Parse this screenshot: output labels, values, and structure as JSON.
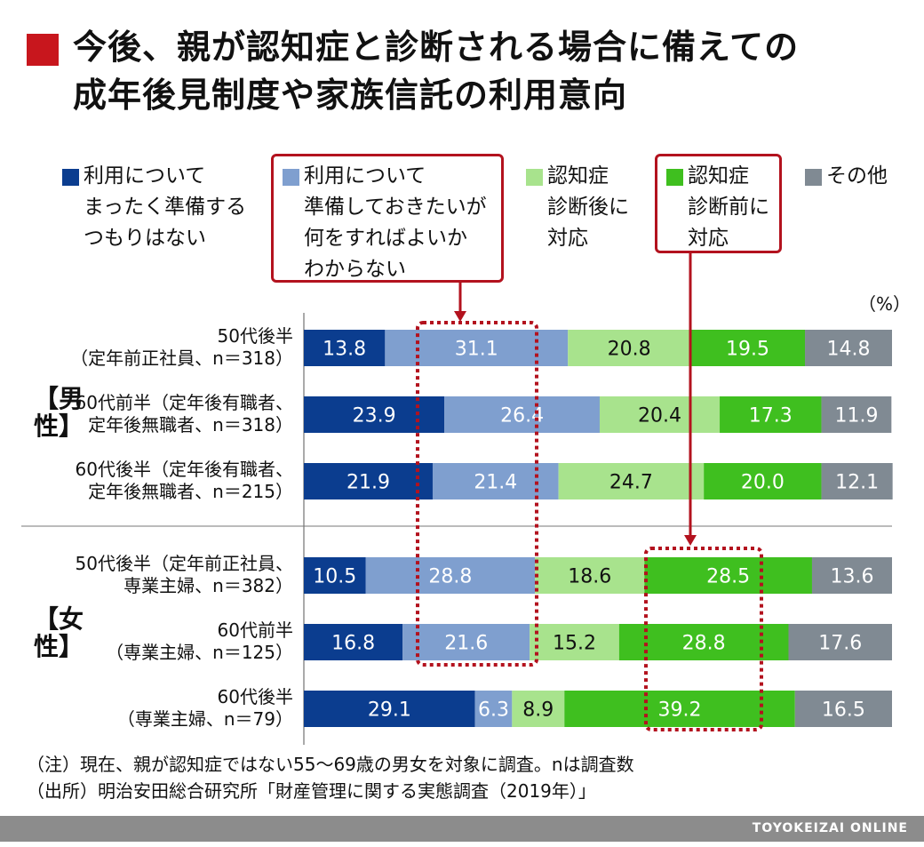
{
  "title": {
    "line1": "今後、親が認知症と診断される場合に備えての",
    "line2": "成年後見制度や家族信託の利用意向"
  },
  "unit": "（%）",
  "group_labels": {
    "male": "【男性】",
    "female": "【女性】"
  },
  "legend": [
    {
      "text": "利用について\nまったく準備する\nつもりはない",
      "color": "#0b3d8f"
    },
    {
      "text": "利用について\n準備しておきたいが\n何をすればよいか\nわからない",
      "color": "#7f9fcf"
    },
    {
      "text": "認知症\n診断後に\n対応",
      "color": "#a8e38d"
    },
    {
      "text": "認知症\n診断前に\n対応",
      "color": "#3fbf1f"
    },
    {
      "text": "その他",
      "color": "#808a93"
    }
  ],
  "colors": {
    "highlight": "#b3121e",
    "text_dark_segment": "#111111",
    "text_light_segment": "#ffffff"
  },
  "chart_data": {
    "type": "bar",
    "orientation": "horizontal",
    "stacked": true,
    "unit": "%",
    "series_colors": [
      "#0b3d8f",
      "#7f9fcf",
      "#a8e38d",
      "#3fbf1f",
      "#808a93"
    ],
    "categories": [
      "50代後半\n（定年前正社員、n＝318）",
      "60代前半（定年後有職者、\n定年後無職者、n＝318）",
      "60代後半（定年後有職者、\n定年後無職者、n＝215）",
      "50代後半（定年前正社員、\n専業主婦、n＝382）",
      "60代前半\n（専業主婦、n＝125）",
      "60代後半\n（専業主婦、n＝79）"
    ],
    "groups": [
      {
        "label": "男性",
        "rows": [
          0,
          1,
          2
        ]
      },
      {
        "label": "女性",
        "rows": [
          3,
          4,
          5
        ]
      }
    ],
    "series": [
      {
        "name": "利用について まったく準備する つもりはない",
        "values": [
          13.8,
          23.9,
          21.9,
          10.5,
          16.8,
          29.1
        ]
      },
      {
        "name": "利用について 準備しておきたいが 何をすればよいか わからない",
        "values": [
          31.1,
          26.4,
          21.4,
          28.8,
          21.6,
          6.3
        ]
      },
      {
        "name": "認知症 診断後に 対応",
        "values": [
          20.8,
          20.4,
          24.7,
          18.6,
          15.2,
          8.9
        ]
      },
      {
        "name": "認知症 診断前に 対応",
        "values": [
          19.5,
          17.3,
          20.0,
          28.5,
          28.8,
          39.2
        ]
      },
      {
        "name": "その他",
        "values": [
          14.8,
          11.9,
          12.1,
          13.6,
          17.6,
          16.5
        ]
      }
    ],
    "xlim": [
      0,
      100
    ],
    "grid": false,
    "legend_position": "top"
  },
  "notes": [
    "（注）現在、親が認知症ではない55〜69歳の男女を対象に調査。nは調査数",
    "（出所）明治安田総合研究所「財産管理に関する実態調査（2019年）」"
  ],
  "brand": "TOYOKEIZAI ONLINE"
}
